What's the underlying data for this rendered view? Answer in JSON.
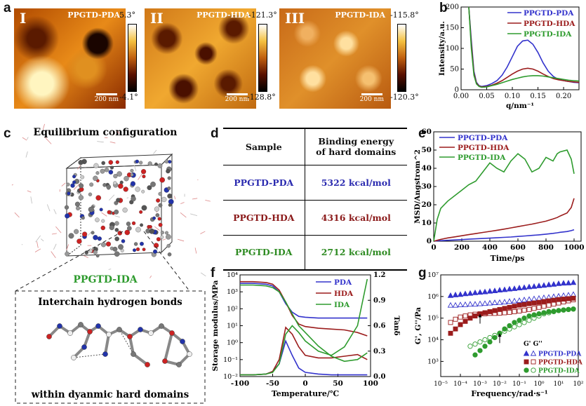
{
  "panels": {
    "a": "a",
    "b": "b",
    "c": "c",
    "d": "d",
    "e": "e",
    "f": "f",
    "g": "g"
  },
  "afm": [
    {
      "roman": "I",
      "name": "PPGTD-PDA",
      "scale": "200 nm",
      "cmax": "5.3°",
      "cmin": "-4.1°"
    },
    {
      "roman": "II",
      "name": "PPGTD-HDA",
      "scale": "200 nm",
      "cmax": "-121.3°",
      "cmin": "-128.8°"
    },
    {
      "roman": "III",
      "name": "PPGTD-IDA",
      "scale": "200 nm",
      "cmax": "-115.8°",
      "cmin": "-120.3°"
    }
  ],
  "c": {
    "title": "Equilibrium configuration",
    "sample": "PPGTD-IDA",
    "inset_title": "Interchain hydrogen bonds",
    "inset_caption": "within dyanmic hard domains"
  },
  "table_d": {
    "header": [
      "Sample",
      "Binding energy",
      "of hard domains"
    ],
    "rows": [
      {
        "sample": "PPGTD-PDA",
        "energy": "5322 kcal/mol",
        "color": "#2b2bb0"
      },
      {
        "sample": "PPGTD-HDA",
        "energy": "4316 kcal/mol",
        "color": "#8b1a1a"
      },
      {
        "sample": "PPGTD-IDA",
        "energy": "2712 kcal/mol",
        "color": "#2e8b22"
      }
    ]
  },
  "colors": {
    "blue": "#3333cc",
    "red": "#9b1c1c",
    "green": "#2e9b2e"
  },
  "chart_data": [
    {
      "id": "b",
      "type": "line",
      "xlabel": "q/nm⁻¹",
      "ylabel": "Intensity/a.u.",
      "xlim": [
        0.0,
        0.23
      ],
      "ylim": [
        0,
        200
      ],
      "xticks": [
        "0.00",
        "0.05",
        "0.10",
        "0.15",
        "0.20"
      ],
      "yticks": [
        "0",
        "50",
        "100",
        "150",
        "200"
      ],
      "legend_position": "top-right",
      "x": [
        0.015,
        0.02,
        0.025,
        0.03,
        0.035,
        0.04,
        0.05,
        0.06,
        0.07,
        0.08,
        0.09,
        0.1,
        0.11,
        0.12,
        0.13,
        0.14,
        0.15,
        0.16,
        0.17,
        0.18,
        0.19,
        0.2,
        0.21,
        0.22,
        0.23
      ],
      "series": [
        {
          "name": "PPGTD-PDA",
          "color": "#3333cc",
          "values": [
            200,
            120,
            45,
            18,
            10,
            8,
            10,
            15,
            22,
            35,
            55,
            80,
            105,
            118,
            120,
            110,
            90,
            65,
            45,
            32,
            25,
            22,
            20,
            18,
            17
          ]
        },
        {
          "name": "PPGTD-HDA",
          "color": "#9b1c1c",
          "values": [
            200,
            110,
            40,
            16,
            9,
            7,
            8,
            11,
            16,
            22,
            30,
            38,
            45,
            50,
            52,
            50,
            45,
            38,
            32,
            27,
            24,
            22,
            20,
            19,
            18
          ]
        },
        {
          "name": "PPGTD-IDA",
          "color": "#2e9b2e",
          "values": [
            200,
            100,
            35,
            14,
            8,
            6,
            7,
            10,
            13,
            17,
            21,
            25,
            28,
            31,
            33,
            34,
            34,
            33,
            31,
            29,
            27,
            25,
            23,
            22,
            21
          ]
        }
      ]
    },
    {
      "id": "e",
      "type": "line",
      "xlabel": "Time/ps",
      "ylabel": "MSD/Angstrom^2",
      "xlim": [
        0,
        1050
      ],
      "ylim": [
        0,
        60
      ],
      "xticks": [
        "0",
        "200",
        "400",
        "600",
        "800",
        "1000"
      ],
      "yticks": [
        "0",
        "10",
        "20",
        "30",
        "40",
        "50",
        "60"
      ],
      "legend_position": "top-left",
      "x": [
        0,
        25,
        50,
        100,
        150,
        200,
        250,
        300,
        350,
        400,
        450,
        500,
        550,
        600,
        650,
        700,
        750,
        800,
        850,
        880,
        900,
        950,
        980,
        1000
      ],
      "series": [
        {
          "name": "PPGTD-PDA",
          "color": "#3333cc",
          "values": [
            0,
            0.2,
            0.3,
            0.5,
            0.7,
            0.9,
            1.1,
            1.3,
            1.5,
            1.7,
            1.9,
            2.1,
            2.3,
            2.6,
            2.9,
            3.2,
            3.5,
            3.9,
            4.3,
            4.6,
            4.9,
            5.3,
            5.8,
            6.3
          ]
        },
        {
          "name": "PPGTD-HDA",
          "color": "#9b1c1c",
          "values": [
            0,
            0.5,
            1,
            1.8,
            2.4,
            3.0,
            3.6,
            4.2,
            4.8,
            5.4,
            6.0,
            6.6,
            7.3,
            8.0,
            8.7,
            9.4,
            10.2,
            11.0,
            12.2,
            13.0,
            13.8,
            15.5,
            18.5,
            23.5
          ]
        },
        {
          "name": "PPGTD-IDA",
          "color": "#2e9b2e",
          "values": [
            0,
            12,
            18,
            22,
            25,
            28,
            31,
            33,
            38,
            43,
            40,
            38,
            44,
            48,
            45,
            38,
            40,
            46,
            44,
            48,
            49,
            50,
            45,
            37
          ]
        }
      ]
    },
    {
      "id": "f",
      "type": "line",
      "xlabel": "Temperature/℃",
      "ylabel": "Storage modulus/MPa",
      "y2label": "Tanδ",
      "xlim": [
        -100,
        100
      ],
      "ylim_log10": [
        -2,
        4
      ],
      "y2lim": [
        0,
        1.2
      ],
      "xticks": [
        "-100",
        "-50",
        "0",
        "50",
        "100"
      ],
      "yticks": [
        "10⁻²",
        "10⁻¹",
        "10⁰",
        "10¹",
        "10²",
        "10³",
        "10⁴"
      ],
      "y2ticks": [
        "0.0",
        "0.3",
        "0.6",
        "0.9",
        "1.2"
      ],
      "legend_position": "top-right",
      "x": [
        -100,
        -80,
        -60,
        -50,
        -40,
        -30,
        -20,
        -10,
        0,
        20,
        40,
        60,
        80,
        95
      ],
      "series": [
        {
          "name": "PDA",
          "color": "#3333cc",
          "modulus_log10": [
            3.5,
            3.5,
            3.45,
            3.35,
            3.0,
            2.3,
            1.8,
            1.55,
            1.5,
            1.45,
            1.45,
            1.45,
            1.45,
            1.45
          ],
          "tan_delta": [
            0.02,
            0.02,
            0.03,
            0.06,
            0.15,
            0.42,
            0.25,
            0.1,
            0.05,
            0.03,
            0.02,
            0.02,
            0.02,
            0.02
          ]
        },
        {
          "name": "HDA",
          "color": "#9b1c1c",
          "modulus_log10": [
            3.6,
            3.6,
            3.55,
            3.45,
            3.1,
            2.4,
            1.6,
            1.1,
            0.95,
            0.85,
            0.8,
            0.75,
            0.6,
            0.4
          ],
          "tan_delta": [
            0.02,
            0.02,
            0.03,
            0.06,
            0.2,
            0.58,
            0.5,
            0.35,
            0.25,
            0.22,
            0.22,
            0.24,
            0.26,
            0.2
          ]
        },
        {
          "name": "IDA",
          "color": "#2e9b2e",
          "modulus_log10": [
            3.4,
            3.4,
            3.35,
            3.25,
            3.0,
            2.4,
            1.7,
            1.0,
            0.6,
            -0.2,
            -0.8,
            -1.1,
            -1.0,
            -0.6
          ],
          "tan_delta": [
            0.02,
            0.02,
            0.03,
            0.05,
            0.15,
            0.5,
            0.6,
            0.52,
            0.42,
            0.3,
            0.25,
            0.35,
            0.6,
            1.15
          ]
        }
      ]
    },
    {
      "id": "g",
      "type": "scatter",
      "xlabel": "Frequency/rad·s⁻¹",
      "ylabel": "G', G''/Pa",
      "xlim_log10": [
        -5,
        2
      ],
      "ylim_log10": [
        2.3,
        7
      ],
      "xticks": [
        "10⁻⁵",
        "10⁻⁴",
        "10⁻³",
        "10⁻²",
        "10⁻¹",
        "10⁰",
        "10¹",
        "10²"
      ],
      "yticks": [
        "10³",
        "10⁴",
        "10⁵",
        "10⁶",
        "10⁷"
      ],
      "legend_header": "G'  G''",
      "legend_position": "bottom-right",
      "x_log10": [
        -4.5,
        -4.25,
        -4.0,
        -3.75,
        -3.5,
        -3.25,
        -3.0,
        -2.75,
        -2.5,
        -2.25,
        -2.0,
        -1.75,
        -1.5,
        -1.25,
        -1.0,
        -0.75,
        -0.5,
        -0.25,
        0.0,
        0.25,
        0.5,
        0.75,
        1.0,
        1.25,
        1.5,
        1.75
      ],
      "series": [
        {
          "name": "PPGTD-PDA",
          "color": "#3333cc",
          "G1_log10": [
            6.05,
            6.08,
            6.1,
            6.13,
            6.15,
            6.18,
            6.2,
            6.22,
            6.25,
            6.27,
            6.3,
            6.32,
            6.35,
            6.37,
            6.4,
            6.42,
            6.45,
            6.47,
            6.5,
            6.52,
            6.55,
            6.57,
            6.6,
            6.62,
            6.63,
            6.65
          ],
          "G2_log10": [
            5.6,
            5.6,
            5.62,
            5.63,
            5.65,
            5.65,
            5.67,
            5.68,
            5.7,
            5.72,
            5.73,
            5.75,
            5.78,
            5.8,
            5.82,
            5.85,
            5.87,
            5.9,
            5.92,
            5.95,
            5.97,
            6.0,
            6.02,
            6.05,
            6.07,
            6.1
          ]
        },
        {
          "name": "PPGTD-HDA",
          "color": "#9b1c1c",
          "G1_log10": [
            4.3,
            4.5,
            4.7,
            4.85,
            5.0,
            5.1,
            5.2,
            5.25,
            5.3,
            5.35,
            5.4,
            5.45,
            5.5,
            5.55,
            5.6,
            5.63,
            5.67,
            5.7,
            5.73,
            5.77,
            5.8,
            5.83,
            5.86,
            5.88,
            5.9,
            5.92
          ],
          "G2_log10": [
            4.8,
            4.95,
            5.05,
            5.1,
            5.15,
            5.18,
            5.2,
            5.2,
            5.22,
            5.22,
            5.23,
            5.25,
            5.27,
            5.3,
            5.33,
            5.37,
            5.4,
            5.45,
            5.5,
            5.55,
            5.6,
            5.65,
            5.7,
            5.75,
            5.8,
            5.85
          ]
        },
        {
          "name": "PPGTD-IDA",
          "color": "#2e9b2e",
          "G1_log10": [
            null,
            null,
            null,
            null,
            null,
            3.3,
            3.5,
            3.7,
            3.9,
            4.1,
            4.3,
            4.5,
            4.65,
            4.8,
            4.9,
            5.0,
            5.1,
            5.15,
            5.2,
            5.25,
            5.3,
            5.32,
            5.35,
            5.37,
            5.4,
            5.42
          ],
          "G2_log10": [
            null,
            null,
            null,
            null,
            3.7,
            3.8,
            3.9,
            4.0,
            4.1,
            4.2,
            4.3,
            4.4,
            4.5,
            4.6,
            4.7,
            4.8,
            4.9,
            5.0,
            5.1,
            5.2,
            5.25,
            5.3,
            5.35,
            5.38,
            5.4,
            5.42
          ]
        }
      ],
      "crossovers_log10": [
        [
          -3.0,
          5.2
        ],
        [
          -2.0,
          4.3
        ]
      ]
    }
  ]
}
